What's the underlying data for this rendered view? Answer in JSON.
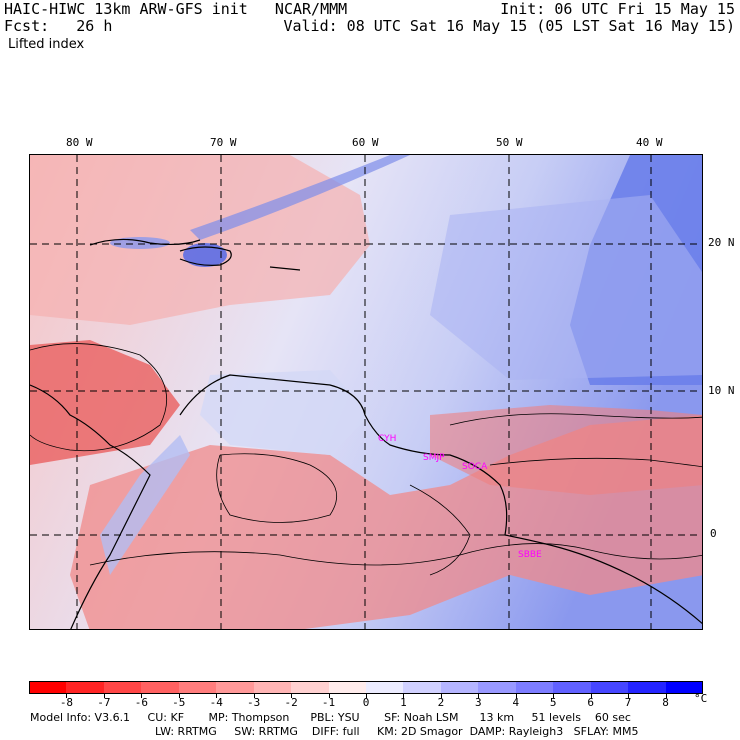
{
  "header": {
    "title": "HAIC-HIWC 13km ARW-GFS init   NCAR/MMM",
    "fcst": "Fcst:   26 h",
    "field": "Lifted index",
    "init": "Init: 06 UTC Fri 15 May 15",
    "valid": "Valid: 08 UTC Sat 16 May 15 (05 LST Sat 16 May 15)"
  },
  "map": {
    "lon_labels": [
      "80 W",
      "70 W",
      "60 W",
      "50 W",
      "40 W"
    ],
    "lat_labels": [
      "20 N",
      "10 N",
      "0"
    ],
    "stations": [
      "CYH",
      "SMJP",
      "SOCA",
      "SBBE"
    ],
    "colors": {
      "very_neg": "#e8505a",
      "neg": "#f08a8a",
      "slight_neg": "#f7c4c4",
      "slight_pos": "#d9dcf7",
      "pos": "#a9b3f2",
      "very_pos": "#5468e6",
      "contour": "#000000",
      "station": "#ff00ff"
    }
  },
  "colorbar": {
    "labels": [
      "-8",
      "-7",
      "-6",
      "-5",
      "-4",
      "-3",
      "-2",
      "-1",
      "0",
      "1",
      "2",
      "3",
      "4",
      "5",
      "6",
      "7",
      "8"
    ],
    "unit": "°C",
    "colors": [
      "#ff0000",
      "#ff2424",
      "#ff4646",
      "#ff6161",
      "#ff7d7d",
      "#ff9999",
      "#ffb5b5",
      "#ffd1d1",
      "#ffecec",
      "#ececff",
      "#d1d1ff",
      "#b5b5ff",
      "#9999ff",
      "#7d7dff",
      "#6161ff",
      "#4646ff",
      "#2424ff",
      "#0000ff"
    ]
  },
  "footer": {
    "line1": "Model Info: V3.6.1     CU: KF       MP: Thompson      PBL: YSU       SF: Noah LSM      13 km     51 levels    60 sec",
    "line2": "LW: RRTMG     SW: RRTMG    DIFF: full     KM: 2D Smagor  DAMP: Rayleigh3   SFLAY: MM5"
  }
}
